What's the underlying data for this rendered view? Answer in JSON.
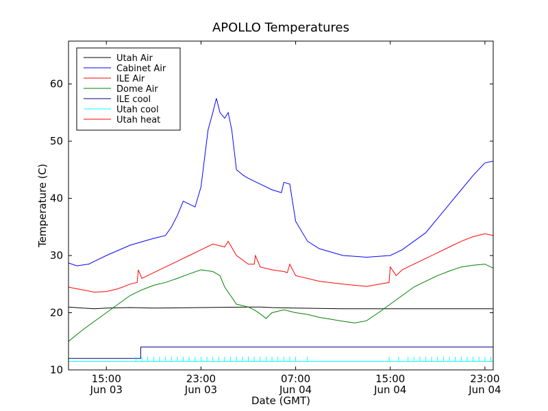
{
  "chart_data": {
    "type": "line",
    "title": "APOLLO Temperatures",
    "xlabel": "Date (GMT)",
    "ylabel": "Temperature (C)",
    "x_units": "hours since Jun 03 00:00 GMT",
    "xlim": [
      11.8,
      47.7
    ],
    "ylim": [
      10,
      67.5
    ],
    "yticks": [
      10,
      20,
      30,
      40,
      50,
      60
    ],
    "xticks": [
      {
        "x": 15,
        "line1": "15:00",
        "line2": "Jun 03"
      },
      {
        "x": 23,
        "line1": "23:00",
        "line2": "Jun 03"
      },
      {
        "x": 31,
        "line1": "07:00",
        "line2": "Jun 04"
      },
      {
        "x": 39,
        "line1": "15:00",
        "line2": "Jun 04"
      },
      {
        "x": 47,
        "line1": "23:00",
        "line2": "Jun 04"
      }
    ],
    "legend_position": "top-left",
    "grid": false,
    "series": [
      {
        "name": "Utah Air",
        "color": "#000000",
        "x": [
          11.8,
          13.0,
          14.0,
          15.0,
          17.0,
          19.0,
          23.0,
          27.0,
          28.0,
          29.0,
          31.0,
          35.0,
          39.0,
          43.0,
          47.0,
          47.7
        ],
        "y": [
          21.0,
          20.8,
          20.7,
          20.8,
          20.9,
          20.8,
          20.9,
          21.0,
          21.0,
          20.9,
          20.8,
          20.7,
          20.7,
          20.7,
          20.7,
          20.7
        ]
      },
      {
        "name": "Cabinet Air",
        "color": "#0000ff",
        "x": [
          11.8,
          12.5,
          13.5,
          15.0,
          17.0,
          19.0,
          20.0,
          20.5,
          21.0,
          21.5,
          22.0,
          22.5,
          23.0,
          23.3,
          23.6,
          24.0,
          24.3,
          24.6,
          25.0,
          25.3,
          25.6,
          26.0,
          26.3,
          26.6,
          27.0,
          28.0,
          29.0,
          29.8,
          30.0,
          30.5,
          31.0,
          32.0,
          33.0,
          35.0,
          37.0,
          39.0,
          40.0,
          41.0,
          42.0,
          43.0,
          44.0,
          45.0,
          46.0,
          47.0,
          47.7
        ],
        "y": [
          28.7,
          28.2,
          28.5,
          30.0,
          31.8,
          33.0,
          33.5,
          35.0,
          37.0,
          39.5,
          39.0,
          38.5,
          42.0,
          47.0,
          52.0,
          55.0,
          57.5,
          55.0,
          54.0,
          55.0,
          52.0,
          45.0,
          44.5,
          44.0,
          43.5,
          42.5,
          41.5,
          41.0,
          42.8,
          42.5,
          36.0,
          32.5,
          31.2,
          30.0,
          29.7,
          30.0,
          31.0,
          32.5,
          34.0,
          36.5,
          39.0,
          41.5,
          44.0,
          46.2,
          46.5
        ]
      },
      {
        "name": "ILE Air",
        "color": "#ff0000",
        "x": [
          11.8,
          12.2,
          13.0,
          14.0,
          15.0,
          16.0,
          17.0,
          17.6,
          17.7,
          18.0,
          19.0,
          20.0,
          21.0,
          22.0,
          23.0,
          24.0,
          25.0,
          25.3,
          26.0,
          27.0,
          27.5,
          27.6,
          28.0,
          29.0,
          30.0,
          30.3,
          30.5,
          31.0,
          33.0,
          35.0,
          37.0,
          38.9,
          39.0,
          39.5,
          40.0,
          41.0,
          42.0,
          43.0,
          44.0,
          45.0,
          46.0,
          47.0,
          47.7
        ],
        "y": [
          24.5,
          24.3,
          24.0,
          23.6,
          23.7,
          24.2,
          25.0,
          25.3,
          27.5,
          26.0,
          27.0,
          28.0,
          29.0,
          30.0,
          31.0,
          32.0,
          31.5,
          32.5,
          30.0,
          28.5,
          28.5,
          30.0,
          28.0,
          27.5,
          27.2,
          27.0,
          28.5,
          26.5,
          25.5,
          25.0,
          24.6,
          25.3,
          28.0,
          26.5,
          27.5,
          28.5,
          29.5,
          30.5,
          31.5,
          32.5,
          33.3,
          33.8,
          33.5
        ]
      },
      {
        "name": "Dome Air",
        "color": "#008000",
        "x": [
          11.8,
          13.0,
          14.0,
          15.0,
          16.0,
          17.0,
          18.0,
          19.0,
          20.0,
          21.0,
          22.0,
          23.0,
          24.0,
          24.6,
          25.0,
          25.5,
          26.0,
          27.0,
          27.5,
          28.0,
          28.5,
          29.0,
          30.0,
          31.0,
          32.0,
          33.0,
          35.0,
          36.0,
          37.0,
          38.0,
          39.0,
          40.0,
          41.0,
          42.0,
          43.0,
          44.0,
          45.0,
          46.0,
          47.0,
          47.7
        ],
        "y": [
          15.0,
          17.0,
          18.5,
          20.0,
          21.5,
          23.0,
          24.0,
          24.8,
          25.3,
          26.0,
          26.8,
          27.5,
          27.2,
          26.5,
          24.5,
          23.0,
          21.5,
          21.0,
          20.5,
          19.8,
          19.0,
          20.0,
          20.5,
          20.0,
          19.7,
          19.2,
          18.5,
          18.2,
          18.6,
          20.0,
          21.5,
          23.0,
          24.5,
          25.5,
          26.5,
          27.3,
          28.0,
          28.3,
          28.5,
          27.8
        ]
      },
      {
        "name": "ILE cool",
        "color": "#000080",
        "x": [
          11.8,
          17.9,
          17.91,
          47.7
        ],
        "y": [
          12.0,
          12.0,
          14.0,
          14.0
        ]
      },
      {
        "name": "Utah cool",
        "color": "#00ffff",
        "x": [
          11.8,
          47.7
        ],
        "y": [
          11.5,
          11.5
        ],
        "spike_x": [
          17.5,
          18.0,
          18.5,
          19.0,
          19.5,
          20.0,
          20.5,
          21.0,
          21.5,
          22.0,
          22.5,
          23.0,
          23.5,
          24.0,
          24.5,
          25.0,
          25.5,
          26.0,
          26.5,
          27.0,
          27.5,
          28.0,
          28.5,
          29.0,
          29.5,
          30.0,
          30.5,
          31.0,
          32.0,
          38.9,
          39.7,
          40.5,
          41.0,
          41.5,
          42.0,
          42.5,
          43.0,
          43.5,
          44.0,
          44.5,
          45.0,
          45.5,
          46.0,
          46.5,
          47.0,
          47.5
        ],
        "spike_y": 12.3
      },
      {
        "name": "Utah heat",
        "color": "#ff0000",
        "x": [],
        "y": []
      }
    ]
  }
}
